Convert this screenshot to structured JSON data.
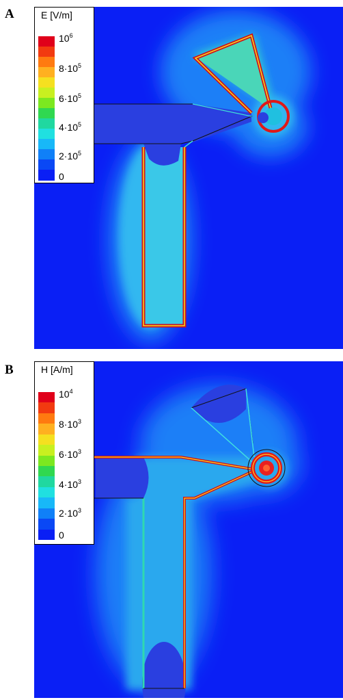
{
  "panels": [
    {
      "letter": "A",
      "legend": {
        "title": "E [V/m]",
        "ticks": [
          {
            "base": "10",
            "exp": "6"
          },
          {
            "base": "8·10",
            "exp": "5"
          },
          {
            "base": "6·10",
            "exp": "5"
          },
          {
            "base": "4·10",
            "exp": "5"
          },
          {
            "base": "2·10",
            "exp": "5"
          },
          {
            "base": "0",
            "exp": ""
          }
        ]
      }
    },
    {
      "letter": "B",
      "legend": {
        "title": "H [A/m]",
        "ticks": [
          {
            "base": "10",
            "exp": "4"
          },
          {
            "base": "8·10",
            "exp": "3"
          },
          {
            "base": "6·10",
            "exp": "3"
          },
          {
            "base": "4·10",
            "exp": "3"
          },
          {
            "base": "2·10",
            "exp": "3"
          },
          {
            "base": "0",
            "exp": ""
          }
        ]
      }
    }
  ],
  "colormap": [
    "#e0001a",
    "#f23a10",
    "#ff7a10",
    "#ffb020",
    "#f5e020",
    "#c8f020",
    "#7ce820",
    "#30d850",
    "#20d8a0",
    "#20e0e0",
    "#18b8f8",
    "#1080f8",
    "#0a48f5",
    "#0a1ff5"
  ]
}
